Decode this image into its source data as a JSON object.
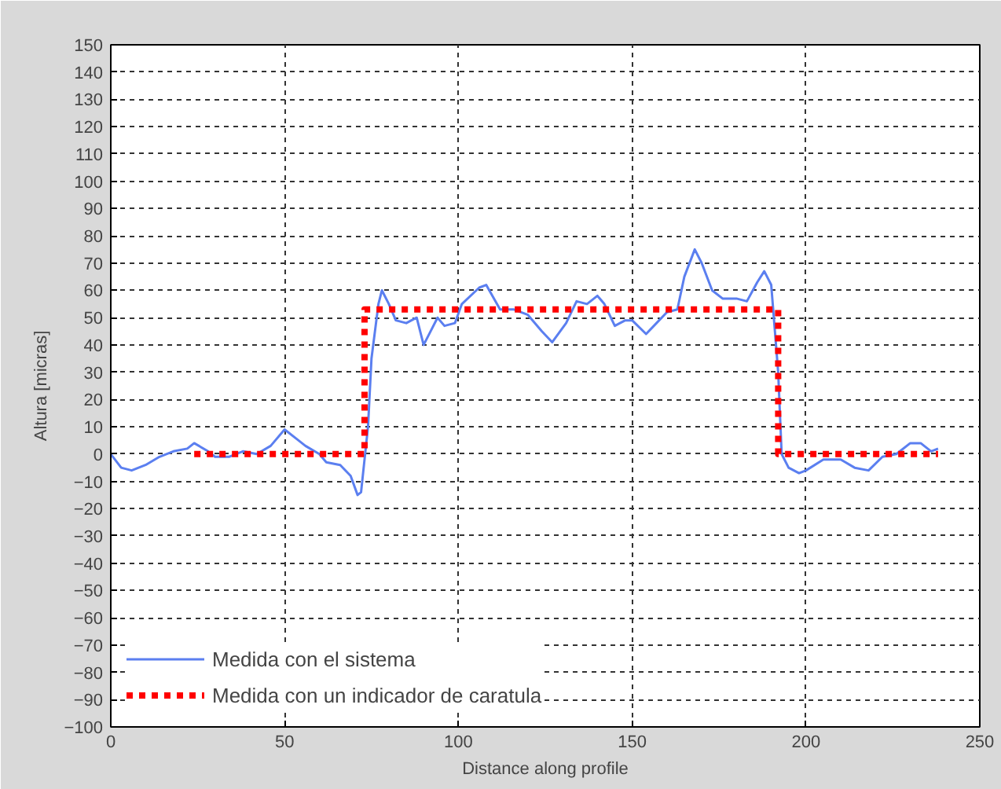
{
  "chart_data": {
    "type": "line",
    "xlabel": "Distance along profile",
    "ylabel": "Altura [micras]",
    "xlim": [
      0,
      250
    ],
    "xticks": [
      0,
      50,
      100,
      150,
      200,
      250
    ],
    "ylim": [
      -100,
      150
    ],
    "yticks": [
      -100,
      -90,
      -80,
      -70,
      -60,
      -50,
      -40,
      -30,
      -20,
      -10,
      0,
      10,
      20,
      30,
      40,
      50,
      60,
      70,
      80,
      90,
      100,
      110,
      120,
      130,
      140,
      150
    ],
    "grid": true,
    "legend": "bottom left",
    "series": [
      {
        "name": "Medida con el sistema",
        "color": "#5b7ff0",
        "line_style": "solid",
        "x": [
          0,
          3,
          6,
          10,
          14,
          18,
          22,
          24,
          28,
          30,
          34,
          38,
          42,
          46,
          50,
          54,
          56,
          60,
          62,
          66,
          69,
          71,
          72,
          74,
          75,
          77,
          78,
          80,
          82,
          85,
          88,
          90,
          92,
          94,
          96,
          99,
          101,
          106,
          108,
          112,
          116,
          120,
          124,
          127,
          131,
          134,
          137,
          140,
          142,
          145,
          148,
          150,
          154,
          157,
          160,
          163,
          165,
          168,
          170,
          173,
          176,
          180,
          183,
          186,
          188,
          190,
          192,
          193,
          195,
          198,
          200,
          205,
          210,
          214,
          218,
          222,
          226,
          230,
          233,
          236,
          238
        ],
        "values": [
          0,
          -5,
          -6,
          -4,
          -1,
          1,
          2,
          4,
          1,
          -1,
          -1,
          1,
          0,
          3,
          9,
          5,
          3,
          0,
          -3,
          -4,
          -8,
          -15,
          -14,
          10,
          35,
          55,
          60,
          55,
          49,
          48,
          50,
          40,
          45,
          50,
          47,
          48,
          55,
          61,
          62,
          53,
          53,
          51,
          45,
          41,
          48,
          56,
          55,
          58,
          55,
          47,
          49,
          49,
          44,
          48,
          52,
          53,
          65,
          75,
          70,
          60,
          57,
          57,
          56,
          63,
          67,
          62,
          30,
          0,
          -5,
          -7,
          -6,
          -2,
          -2,
          -5,
          -6,
          -1,
          0,
          4,
          4,
          1,
          2
        ]
      },
      {
        "name": "Medida con un indicador de caratula",
        "color": "#ff0000",
        "line_style": "dotted",
        "x": [
          24,
          73,
          73,
          192,
          192,
          238
        ],
        "values": [
          0,
          0,
          53,
          53,
          0,
          0
        ]
      }
    ]
  }
}
